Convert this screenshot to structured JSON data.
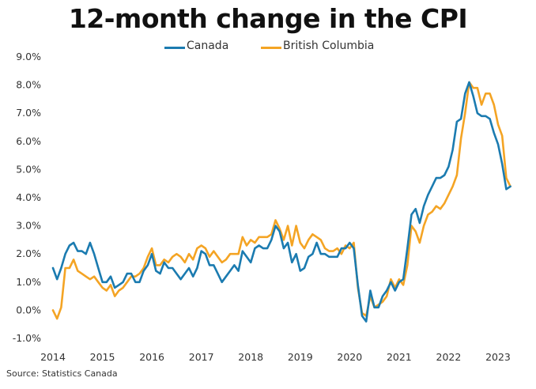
{
  "chart_data": {
    "type": "line",
    "title": "12-month change in the CPI",
    "source": "Source: Statistics Canada",
    "legend_position": "top",
    "grid": false,
    "ylim": [
      -1.0,
      9.0
    ],
    "xlim": [
      2014,
      2023.4
    ],
    "y_ticks": [
      {
        "v": 9.0,
        "label": "9.0%"
      },
      {
        "v": 8.0,
        "label": "8.0%"
      },
      {
        "v": 7.0,
        "label": "7.0%"
      },
      {
        "v": 6.0,
        "label": "6.0%"
      },
      {
        "v": 5.0,
        "label": "5.0%"
      },
      {
        "v": 4.0,
        "label": "4.0%"
      },
      {
        "v": 3.0,
        "label": "3.0%"
      },
      {
        "v": 2.0,
        "label": "2.0%"
      },
      {
        "v": 1.0,
        "label": "1.0%"
      },
      {
        "v": 0.0,
        "label": "0.0%"
      },
      {
        "v": -1.0,
        "label": "-1.0%"
      }
    ],
    "x_ticks": [
      {
        "v": 2014,
        "label": "2014"
      },
      {
        "v": 2015,
        "label": "2015"
      },
      {
        "v": 2016,
        "label": "2016"
      },
      {
        "v": 2017,
        "label": "2017"
      },
      {
        "v": 2018,
        "label": "2018"
      },
      {
        "v": 2019,
        "label": "2019"
      },
      {
        "v": 2020,
        "label": "2020"
      },
      {
        "v": 2021,
        "label": "2021"
      },
      {
        "v": 2022,
        "label": "2022"
      },
      {
        "v": 2023,
        "label": "2023"
      }
    ],
    "series": [
      {
        "name": "Canada",
        "color": "#1b7bb0",
        "x_start": 2014,
        "step": 0.0833333,
        "values": [
          1.5,
          1.1,
          1.5,
          2.0,
          2.3,
          2.4,
          2.1,
          2.1,
          2.0,
          2.4,
          2.0,
          1.5,
          1.0,
          1.0,
          1.2,
          0.8,
          0.9,
          1.0,
          1.3,
          1.3,
          1.0,
          1.0,
          1.4,
          1.6,
          2.0,
          1.4,
          1.3,
          1.7,
          1.5,
          1.5,
          1.3,
          1.1,
          1.3,
          1.5,
          1.2,
          1.5,
          2.1,
          2.0,
          1.6,
          1.6,
          1.3,
          1.0,
          1.2,
          1.4,
          1.6,
          1.4,
          2.1,
          1.9,
          1.7,
          2.2,
          2.3,
          2.2,
          2.2,
          2.5,
          3.0,
          2.8,
          2.2,
          2.4,
          1.7,
          2.0,
          1.4,
          1.5,
          1.9,
          2.0,
          2.4,
          2.0,
          2.0,
          1.9,
          1.9,
          1.9,
          2.2,
          2.2,
          2.4,
          2.2,
          0.9,
          -0.2,
          -0.4,
          0.7,
          0.1,
          0.1,
          0.5,
          0.7,
          1.0,
          0.7,
          1.0,
          1.1,
          2.2,
          3.4,
          3.6,
          3.1,
          3.7,
          4.1,
          4.4,
          4.7,
          4.7,
          4.8,
          5.1,
          5.7,
          6.7,
          6.8,
          7.7,
          8.1,
          7.6,
          7.0,
          6.9,
          6.9,
          6.8,
          6.3,
          5.9,
          5.2,
          4.3,
          4.4
        ]
      },
      {
        "name": "British Columbia",
        "color": "#f4a424",
        "x_start": 2014,
        "step": 0.0833333,
        "values": [
          0.0,
          -0.3,
          0.1,
          1.5,
          1.5,
          1.8,
          1.4,
          1.3,
          1.2,
          1.1,
          1.2,
          1.0,
          0.8,
          0.7,
          0.9,
          0.5,
          0.7,
          0.8,
          1.0,
          1.2,
          1.2,
          1.3,
          1.5,
          1.9,
          2.2,
          1.6,
          1.6,
          1.8,
          1.7,
          1.9,
          2.0,
          1.9,
          1.7,
          2.0,
          1.8,
          2.2,
          2.3,
          2.2,
          1.9,
          2.1,
          1.9,
          1.7,
          1.8,
          2.0,
          2.0,
          2.0,
          2.6,
          2.3,
          2.5,
          2.4,
          2.6,
          2.6,
          2.6,
          2.7,
          3.2,
          2.9,
          2.5,
          3.0,
          2.3,
          3.0,
          2.4,
          2.2,
          2.5,
          2.7,
          2.6,
          2.5,
          2.2,
          2.1,
          2.1,
          2.2,
          2.0,
          2.3,
          2.2,
          2.4,
          0.8,
          -0.1,
          -0.2,
          0.5,
          0.1,
          0.2,
          0.3,
          0.5,
          1.1,
          0.8,
          1.1,
          0.9,
          1.6,
          3.0,
          2.8,
          2.4,
          3.0,
          3.4,
          3.5,
          3.7,
          3.6,
          3.8,
          4.1,
          4.4,
          4.8,
          6.1,
          7.0,
          8.1,
          7.9,
          7.9,
          7.3,
          7.7,
          7.7,
          7.3,
          6.6,
          6.2,
          4.7,
          4.4
        ]
      }
    ]
  }
}
